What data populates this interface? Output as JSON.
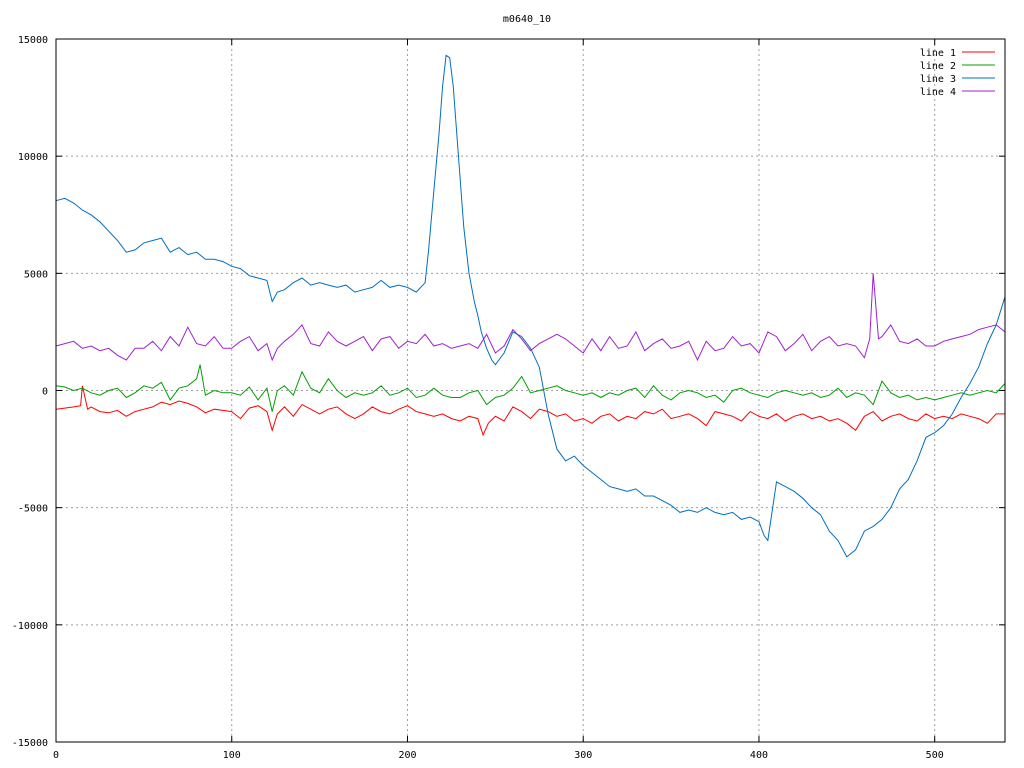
{
  "chart_data": {
    "type": "line",
    "title": "m0640_10",
    "xlabel": "",
    "ylabel": "",
    "xlim": [
      0,
      540
    ],
    "ylim": [
      -15000,
      15000
    ],
    "x_ticks": [
      0,
      100,
      200,
      300,
      400,
      500
    ],
    "y_ticks": [
      -15000,
      -10000,
      -5000,
      0,
      5000,
      10000,
      15000
    ],
    "grid": true,
    "legend_position": "top-right",
    "series": [
      {
        "name": "line 1",
        "color": "#ff0000",
        "x": [
          0,
          5,
          10,
          14,
          15,
          18,
          20,
          25,
          30,
          35,
          40,
          45,
          50,
          55,
          60,
          65,
          70,
          75,
          80,
          85,
          90,
          95,
          100,
          105,
          110,
          115,
          120,
          123,
          126,
          130,
          135,
          140,
          145,
          150,
          155,
          160,
          165,
          170,
          175,
          180,
          185,
          190,
          195,
          200,
          205,
          210,
          215,
          220,
          225,
          230,
          235,
          240,
          243,
          246,
          250,
          255,
          260,
          265,
          270,
          275,
          280,
          285,
          290,
          295,
          300,
          305,
          310,
          315,
          320,
          325,
          330,
          335,
          340,
          345,
          350,
          355,
          360,
          365,
          370,
          375,
          380,
          385,
          390,
          395,
          400,
          405,
          410,
          415,
          420,
          425,
          430,
          435,
          440,
          445,
          450,
          455,
          460,
          465,
          470,
          475,
          480,
          485,
          490,
          495,
          500,
          505,
          510,
          515,
          520,
          525,
          530,
          535,
          540
        ],
        "y": [
          -800,
          -750,
          -700,
          -650,
          200,
          -800,
          -700,
          -900,
          -950,
          -850,
          -1100,
          -900,
          -800,
          -700,
          -500,
          -600,
          -450,
          -550,
          -700,
          -950,
          -800,
          -850,
          -900,
          -1200,
          -750,
          -650,
          -900,
          -1700,
          -1000,
          -700,
          -1100,
          -600,
          -800,
          -1000,
          -800,
          -700,
          -1000,
          -1200,
          -1000,
          -700,
          -900,
          -1000,
          -800,
          -650,
          -900,
          -1000,
          -1100,
          -1000,
          -1200,
          -1300,
          -1100,
          -1200,
          -1900,
          -1400,
          -1100,
          -1300,
          -700,
          -900,
          -1200,
          -800,
          -900,
          -1100,
          -1000,
          -1300,
          -1200,
          -1400,
          -1100,
          -1000,
          -1300,
          -1100,
          -1200,
          -900,
          -1000,
          -800,
          -1200,
          -1100,
          -1000,
          -1200,
          -1500,
          -900,
          -1000,
          -1100,
          -1300,
          -900,
          -1100,
          -1200,
          -1000,
          -1300,
          -1100,
          -1000,
          -1200,
          -1100,
          -1300,
          -1200,
          -1400,
          -1700,
          -1100,
          -900,
          -1300,
          -1100,
          -1000,
          -1200,
          -1300,
          -1000,
          -1200,
          -1100,
          -1200,
          -1000,
          -1100,
          -1200,
          -1400,
          -1000,
          -1000
        ]
      },
      {
        "name": "line 2",
        "color": "#00a000",
        "x": [
          0,
          5,
          10,
          15,
          20,
          25,
          30,
          35,
          40,
          45,
          50,
          55,
          60,
          65,
          70,
          75,
          80,
          82,
          85,
          90,
          95,
          100,
          105,
          110,
          115,
          120,
          123,
          126,
          130,
          135,
          140,
          145,
          150,
          155,
          160,
          165,
          170,
          175,
          180,
          185,
          190,
          195,
          200,
          205,
          210,
          215,
          220,
          225,
          230,
          235,
          240,
          245,
          250,
          255,
          260,
          265,
          270,
          275,
          280,
          285,
          290,
          295,
          300,
          305,
          310,
          315,
          320,
          325,
          330,
          335,
          340,
          345,
          350,
          355,
          360,
          365,
          370,
          375,
          380,
          385,
          390,
          395,
          400,
          405,
          410,
          415,
          420,
          425,
          430,
          435,
          440,
          445,
          450,
          455,
          460,
          465,
          470,
          475,
          480,
          485,
          490,
          495,
          500,
          505,
          510,
          515,
          520,
          525,
          530,
          535,
          540
        ],
        "y": [
          200,
          150,
          0,
          100,
          -100,
          -200,
          0,
          100,
          -300,
          -100,
          200,
          100,
          350,
          -400,
          100,
          200,
          500,
          1100,
          -200,
          0,
          -100,
          -100,
          -200,
          150,
          -400,
          100,
          -900,
          0,
          200,
          -200,
          800,
          100,
          -100,
          500,
          0,
          -300,
          -100,
          -200,
          -100,
          200,
          -200,
          -100,
          100,
          -300,
          -200,
          100,
          -200,
          -300,
          -300,
          -100,
          0,
          -600,
          -300,
          -200,
          100,
          600,
          -100,
          0,
          100,
          200,
          0,
          -100,
          -200,
          -100,
          -300,
          -100,
          -200,
          0,
          100,
          -300,
          200,
          -200,
          -400,
          -100,
          0,
          -100,
          -300,
          -200,
          -500,
          0,
          100,
          -100,
          -200,
          -300,
          -100,
          0,
          -100,
          -200,
          -100,
          -300,
          -200,
          100,
          -300,
          -100,
          -200,
          -600,
          400,
          -100,
          -300,
          -200,
          -400,
          -300,
          -400,
          -300,
          -200,
          -100,
          -200,
          -100,
          0,
          -100,
          300
        ]
      },
      {
        "name": "line 3",
        "color": "#0070c0",
        "x": [
          0,
          5,
          10,
          15,
          20,
          25,
          30,
          35,
          40,
          45,
          50,
          55,
          60,
          65,
          70,
          75,
          80,
          85,
          90,
          95,
          100,
          105,
          110,
          115,
          120,
          123,
          126,
          130,
          135,
          140,
          145,
          150,
          155,
          160,
          165,
          170,
          175,
          180,
          185,
          190,
          195,
          200,
          205,
          210,
          212,
          215,
          218,
          220,
          222,
          224,
          226,
          228,
          230,
          232,
          235,
          238,
          240,
          242,
          245,
          248,
          250,
          255,
          260,
          265,
          270,
          275,
          280,
          285,
          290,
          295,
          300,
          305,
          310,
          315,
          320,
          325,
          330,
          335,
          340,
          345,
          350,
          355,
          360,
          365,
          370,
          375,
          380,
          385,
          390,
          395,
          400,
          403,
          405,
          410,
          415,
          420,
          425,
          430,
          435,
          440,
          445,
          450,
          455,
          460,
          465,
          470,
          475,
          480,
          485,
          490,
          495,
          500,
          505,
          510,
          515,
          520,
          525,
          530,
          535,
          540
        ],
        "y": [
          8100,
          8200,
          8000,
          7700,
          7500,
          7200,
          6800,
          6400,
          5900,
          6000,
          6300,
          6400,
          6500,
          5900,
          6100,
          5800,
          5900,
          5600,
          5600,
          5500,
          5300,
          5200,
          4900,
          4800,
          4700,
          3800,
          4200,
          4300,
          4600,
          4800,
          4500,
          4600,
          4500,
          4400,
          4500,
          4200,
          4300,
          4400,
          4700,
          4400,
          4500,
          4400,
          4200,
          4600,
          6000,
          8500,
          11000,
          13000,
          14300,
          14200,
          13000,
          11000,
          9000,
          7000,
          5000,
          3800,
          3200,
          2500,
          1800,
          1300,
          1100,
          1600,
          2500,
          2300,
          1800,
          1000,
          -1000,
          -2500,
          -3000,
          -2800,
          -3200,
          -3500,
          -3800,
          -4100,
          -4200,
          -4300,
          -4200,
          -4500,
          -4500,
          -4700,
          -4900,
          -5200,
          -5100,
          -5200,
          -5000,
          -5200,
          -5300,
          -5200,
          -5500,
          -5400,
          -5600,
          -6200,
          -6400,
          -3900,
          -4100,
          -4300,
          -4600,
          -5000,
          -5300,
          -6000,
          -6400,
          -7100,
          -6800,
          -6000,
          -5800,
          -5500,
          -5000,
          -4200,
          -3800,
          -3000,
          -2000,
          -1800,
          -1500,
          -1000,
          -300,
          300,
          1000,
          2000,
          2800,
          4000
        ]
      },
      {
        "name": "line 4",
        "color": "#a020d0",
        "x": [
          0,
          5,
          10,
          15,
          20,
          25,
          30,
          35,
          40,
          45,
          50,
          55,
          60,
          65,
          70,
          75,
          80,
          85,
          90,
          95,
          100,
          105,
          110,
          115,
          120,
          123,
          126,
          130,
          135,
          140,
          145,
          150,
          155,
          160,
          165,
          170,
          175,
          180,
          185,
          190,
          195,
          200,
          205,
          210,
          215,
          220,
          225,
          230,
          235,
          240,
          245,
          250,
          255,
          260,
          265,
          270,
          275,
          280,
          285,
          290,
          295,
          300,
          305,
          310,
          315,
          320,
          325,
          330,
          335,
          340,
          345,
          350,
          355,
          360,
          365,
          370,
          375,
          380,
          385,
          390,
          395,
          400,
          405,
          410,
          415,
          420,
          425,
          430,
          435,
          440,
          445,
          450,
          455,
          460,
          463,
          465,
          468,
          470,
          475,
          480,
          485,
          490,
          495,
          500,
          505,
          510,
          515,
          520,
          525,
          530,
          535,
          540
        ],
        "y": [
          1900,
          2000,
          2100,
          1800,
          1900,
          1700,
          1800,
          1500,
          1300,
          1800,
          1800,
          2100,
          1700,
          2300,
          1900,
          2700,
          2000,
          1900,
          2300,
          1800,
          1800,
          2100,
          2300,
          1700,
          2000,
          1300,
          1800,
          2100,
          2400,
          2800,
          2000,
          1900,
          2500,
          2100,
          1900,
          2100,
          2300,
          1700,
          2200,
          2300,
          1800,
          2100,
          2000,
          2400,
          1900,
          2000,
          1800,
          1900,
          2000,
          1800,
          2400,
          1600,
          1900,
          2600,
          2200,
          1700,
          2000,
          2200,
          2400,
          2200,
          1900,
          1600,
          2200,
          1700,
          2300,
          1800,
          1900,
          2500,
          1700,
          2000,
          2200,
          1800,
          1900,
          2100,
          1300,
          2100,
          1700,
          1800,
          2300,
          1900,
          2000,
          1600,
          2500,
          2300,
          1700,
          2000,
          2400,
          1700,
          2100,
          2300,
          1900,
          2000,
          1900,
          1400,
          2200,
          5000,
          2200,
          2300,
          2800,
          2100,
          2000,
          2200,
          1900,
          1900,
          2100,
          2200,
          2300,
          2400,
          2600,
          2700,
          2800,
          2500
        ]
      }
    ]
  }
}
